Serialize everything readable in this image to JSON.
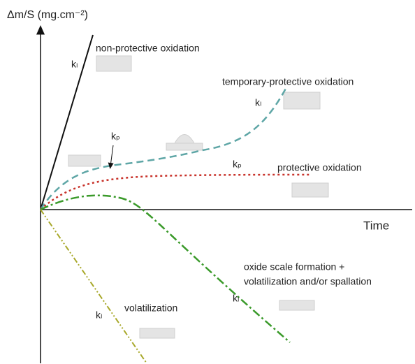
{
  "axes": {
    "y_label": "Δm/S (mg.cm⁻²)",
    "x_label": "Time"
  },
  "curves": [
    {
      "label": "non-protective oxidation",
      "rate": "kₗ"
    },
    {
      "label": "temporary-protective oxidation",
      "rate": "kₗ",
      "rate2": "kₚ"
    },
    {
      "label": "protective oxidation",
      "rate": "kₚ"
    },
    {
      "label_lines": [
        "oxide scale formation +",
        "volatilization and/or spallation"
      ],
      "rate": "kₗ"
    },
    {
      "label": "volatilization",
      "rate": "kₗ"
    }
  ]
}
